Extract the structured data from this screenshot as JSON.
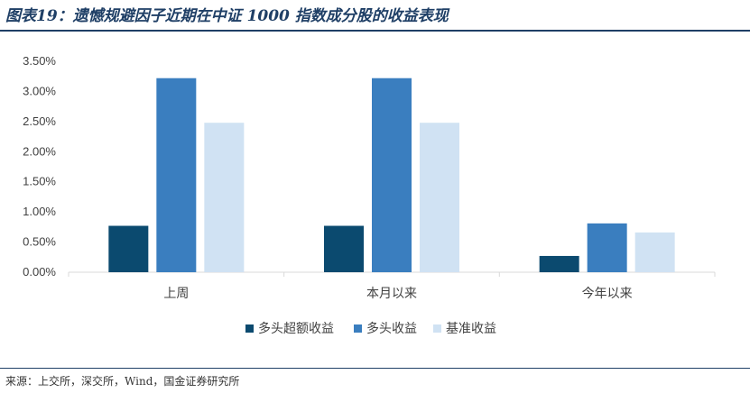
{
  "header": {
    "title": "图表19：遗憾规避因子近期在中证 1000 指数成分股的收益表现"
  },
  "footer": {
    "source": "来源：上交所，深交所，Wind，国金证券研究所"
  },
  "colors": {
    "title": "#1f3f66",
    "axis": "#d9d9d9",
    "series": [
      "#0b4a6f",
      "#3a7ebf",
      "#d0e2f3"
    ]
  },
  "chart_data": {
    "type": "bar",
    "categories": [
      "上周",
      "本月以来",
      "今年以来"
    ],
    "series": [
      {
        "name": "多头超额收益",
        "values": [
          0.0077,
          0.0077,
          0.0027
        ]
      },
      {
        "name": "多头收益",
        "values": [
          0.0322,
          0.0322,
          0.0081
        ]
      },
      {
        "name": "基准收益",
        "values": [
          0.0248,
          0.0248,
          0.0066
        ]
      }
    ],
    "ylim": [
      0,
      0.035
    ],
    "yticks": [
      0,
      0.005,
      0.01,
      0.015,
      0.02,
      0.025,
      0.03,
      0.035
    ],
    "ytick_labels": [
      "0.00%",
      "0.50%",
      "1.00%",
      "1.50%",
      "2.00%",
      "2.50%",
      "3.00%",
      "3.50%"
    ],
    "legend_position": "bottom",
    "grid": false
  }
}
